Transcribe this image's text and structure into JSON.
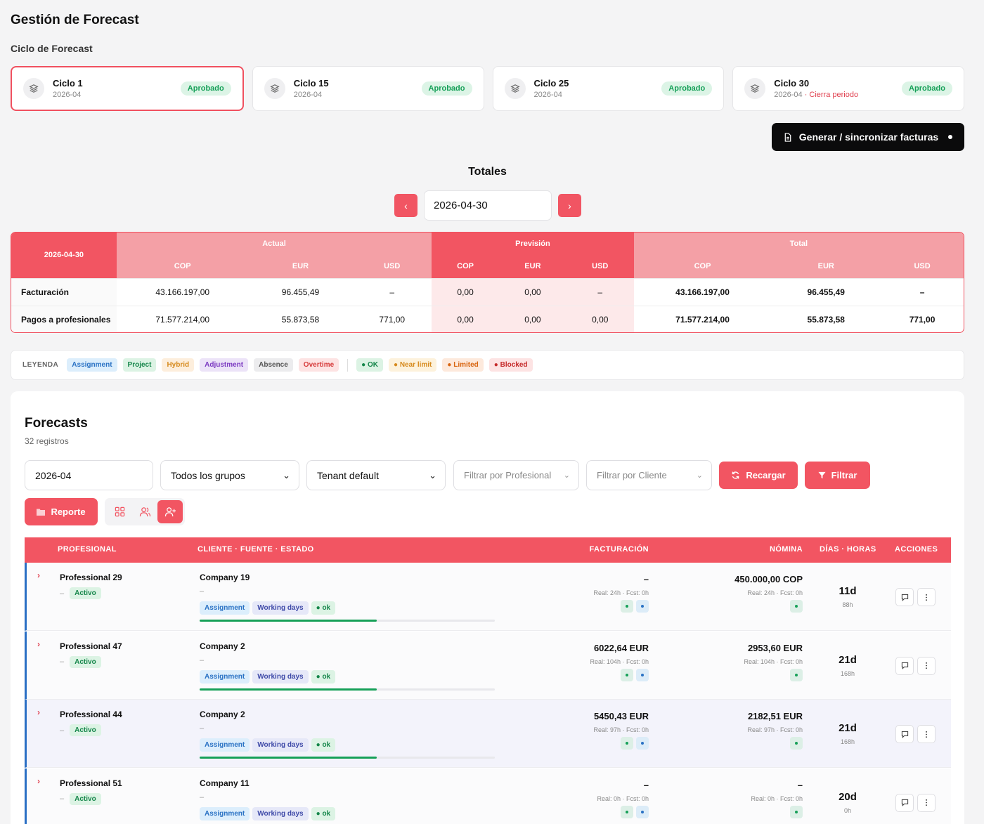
{
  "page_title": "Gestión de Forecast",
  "cycle_section_label": "Ciclo de Forecast",
  "cycles": [
    {
      "name": "Ciclo 1",
      "date": "2026-04",
      "note": "",
      "status": "Aprobado"
    },
    {
      "name": "Ciclo 15",
      "date": "2026-04",
      "note": "",
      "status": "Aprobado"
    },
    {
      "name": "Ciclo 25",
      "date": "2026-04",
      "note": "",
      "status": "Aprobado"
    },
    {
      "name": "Ciclo 30",
      "date": "2026-04",
      "note": "· Cierra periodo",
      "status": "Aprobado"
    }
  ],
  "generate_button": "Generar / sincronizar facturas",
  "totals": {
    "title": "Totales",
    "date": "2026-04-30",
    "table_date": "2026-04-30",
    "groups": [
      "Actual",
      "Previsión",
      "Total"
    ],
    "currencies": [
      "COP",
      "EUR",
      "USD"
    ],
    "rows": [
      {
        "label": "Facturación",
        "actual": [
          "43.166.197,00",
          "96.455,49",
          "–"
        ],
        "prevision": [
          "0,00",
          "0,00",
          "–"
        ],
        "total": [
          "43.166.197,00",
          "96.455,49",
          "–"
        ]
      },
      {
        "label": "Pagos a profesionales",
        "actual": [
          "71.577.214,00",
          "55.873,58",
          "771,00"
        ],
        "prevision": [
          "0,00",
          "0,00",
          "0,00"
        ],
        "total": [
          "71.577.214,00",
          "55.873,58",
          "771,00"
        ]
      }
    ]
  },
  "legend": {
    "title": "LEYENDA",
    "types": [
      "Assignment",
      "Project",
      "Hybrid",
      "Adjustment",
      "Absence",
      "Overtime"
    ],
    "statuses": [
      "OK",
      "Near limit",
      "Limited",
      "Blocked"
    ]
  },
  "forecasts": {
    "title": "Forecasts",
    "count": "32 registros",
    "filters": {
      "period": "2026-04",
      "group": "Todos los grupos",
      "tenant": "Tenant default",
      "professional_placeholder": "Filtrar por Profesional",
      "client_placeholder": "Filtrar por Cliente"
    },
    "reload_button": "Recargar",
    "filter_button": "Filtrar",
    "report_button": "Reporte",
    "columns": [
      "PROFESIONAL",
      "CLIENTE · FUENTE · ESTADO",
      "FACTURACIÓN",
      "NÓMINA",
      "DÍAS · HORAS",
      "ACCIONES"
    ],
    "rows": [
      {
        "professional": "Professional 29",
        "dash": "–",
        "status": "Activo",
        "client": "Company 19",
        "client_dash": "–",
        "tags": [
          "Assignment",
          "Working days",
          "ok"
        ],
        "progress": 0.6,
        "billing": "–",
        "billing_sub": "Real: 24h · Fcst: 0h",
        "payroll": "450.000,00 COP",
        "payroll_sub": "Real: 24h · Fcst: 0h",
        "days": "11d",
        "hours": "88h"
      },
      {
        "professional": "Professional 47",
        "dash": "–",
        "status": "Activo",
        "client": "Company 2",
        "client_dash": "–",
        "tags": [
          "Assignment",
          "Working days",
          "ok"
        ],
        "progress": 0.6,
        "billing": "6022,64 EUR",
        "billing_sub": "Real: 104h · Fcst: 0h",
        "payroll": "2953,60 EUR",
        "payroll_sub": "Real: 104h · Fcst: 0h",
        "days": "21d",
        "hours": "168h"
      },
      {
        "professional": "Professional 44",
        "dash": "–",
        "status": "Activo",
        "client": "Company 2",
        "client_dash": "–",
        "tags": [
          "Assignment",
          "Working days",
          "ok"
        ],
        "progress": 0.6,
        "billing": "5450,43 EUR",
        "billing_sub": "Real: 97h · Fcst: 0h",
        "payroll": "2182,51 EUR",
        "payroll_sub": "Real: 97h · Fcst: 0h",
        "days": "21d",
        "hours": "168h"
      },
      {
        "professional": "Professional 51",
        "dash": "–",
        "status": "Activo",
        "client": "Company 11",
        "client_dash": "–",
        "tags": [
          "Assignment",
          "Working days",
          "ok"
        ],
        "progress": 0.6,
        "billing": "–",
        "billing_sub": "Real: 0h · Fcst: 0h",
        "payroll": "–",
        "payroll_sub": "Real: 0h · Fcst: 0h",
        "days": "20d",
        "hours": "0h"
      }
    ]
  },
  "colors": {
    "accent": "#f25562",
    "dark": "#0b0b0c",
    "ok": "#16a058",
    "row_border": "#2a6fc4"
  }
}
